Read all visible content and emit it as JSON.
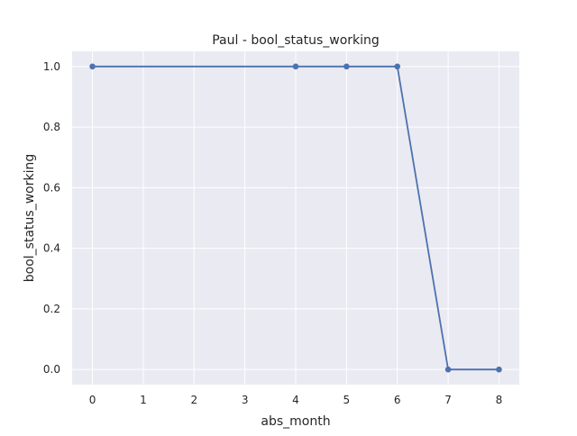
{
  "chart_data": {
    "type": "line",
    "title": "Paul - bool_status_working",
    "xlabel": "abs_month",
    "ylabel": "bool_status_working",
    "x": [
      0,
      4,
      5,
      6,
      7,
      8
    ],
    "series": [
      {
        "values": [
          1.0,
          1.0,
          1.0,
          1.0,
          0.0,
          0.0
        ]
      }
    ],
    "xlim": [
      -0.4,
      8.4
    ],
    "ylim": [
      -0.05,
      1.05
    ],
    "xticks": [
      0,
      1,
      2,
      3,
      4,
      5,
      6,
      7,
      8
    ],
    "yticks": [
      0.0,
      0.2,
      0.4,
      0.6,
      0.8,
      1.0
    ],
    "xtick_labels": [
      "0",
      "1",
      "2",
      "3",
      "4",
      "5",
      "6",
      "7",
      "8"
    ],
    "ytick_labels": [
      "0.0",
      "0.2",
      "0.4",
      "0.6",
      "0.8",
      "1.0"
    ],
    "grid": true,
    "colors": {
      "background": "#eaeaf2",
      "line": "#4c72b0",
      "grid": "#ffffff"
    }
  }
}
